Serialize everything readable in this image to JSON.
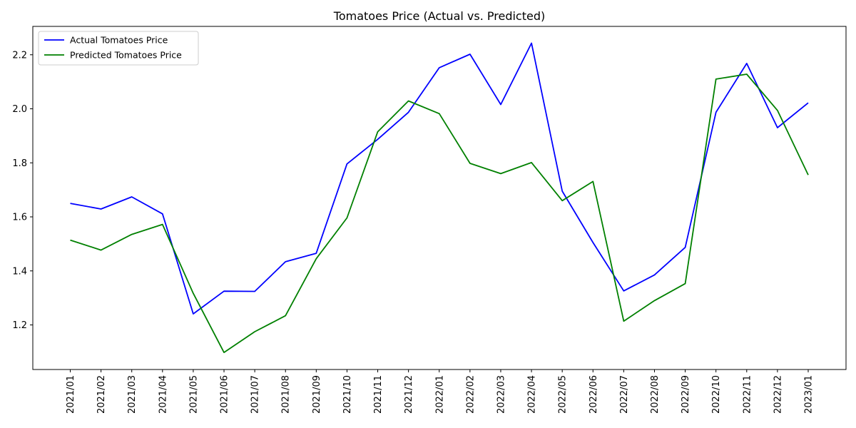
{
  "chart_data": {
    "type": "line",
    "title": "Tomatoes Price (Actual vs. Predicted)",
    "xlabel": "",
    "ylabel": "",
    "x": [
      "2021/01",
      "2021/02",
      "2021/03",
      "2021/04",
      "2021/05",
      "2021/06",
      "2021/07",
      "2021/08",
      "2021/09",
      "2021/10",
      "2021/11",
      "2021/12",
      "2022/01",
      "2022/02",
      "2022/03",
      "2022/04",
      "2022/05",
      "2022/06",
      "2022/07",
      "2022/08",
      "2022/09",
      "2022/10",
      "2022/11",
      "2022/12",
      "2023/01"
    ],
    "series": [
      {
        "name": "Actual Tomatoes Price",
        "color": "#0000ff",
        "values": [
          1.65,
          1.629,
          1.674,
          1.611,
          1.241,
          1.325,
          1.324,
          1.434,
          1.465,
          1.796,
          1.887,
          1.987,
          2.152,
          2.202,
          2.016,
          2.243,
          1.695,
          1.505,
          1.326,
          1.385,
          1.487,
          1.987,
          2.168,
          1.93,
          2.022
        ]
      },
      {
        "name": "Predicted Tomatoes Price",
        "color": "#008000",
        "values": [
          1.514,
          1.477,
          1.535,
          1.572,
          1.317,
          1.098,
          1.175,
          1.234,
          1.445,
          1.596,
          1.915,
          2.029,
          1.982,
          1.798,
          1.76,
          1.801,
          1.66,
          1.731,
          1.214,
          1.29,
          1.353,
          2.11,
          2.128,
          1.994,
          1.755
        ]
      }
    ],
    "yticks": [
      "1.2",
      "1.4",
      "1.6",
      "1.8",
      "2.0",
      "2.2"
    ],
    "ylim": [
      1.035,
      2.305
    ],
    "grid": false,
    "legend": "top-left"
  }
}
